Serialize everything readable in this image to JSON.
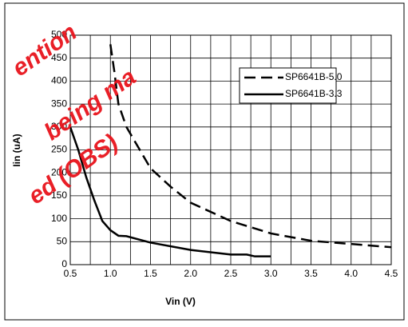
{
  "chart_data": {
    "type": "line",
    "xlabel": "Vin (V)",
    "ylabel": "Iin (uA)",
    "xlim": [
      0.5,
      4.5
    ],
    "ylim": [
      0,
      500
    ],
    "xticks": [
      0.5,
      {
        "value": 1,
        "label": "1.0"
      },
      1.5,
      {
        "value": 2,
        "label": "2.0"
      },
      2.5,
      {
        "value": 3,
        "label": "3.0"
      },
      3.5,
      {
        "value": 4,
        "label": "4.0"
      },
      4.5
    ],
    "yticks": [
      0,
      50,
      100,
      150,
      200,
      250,
      300,
      350,
      400,
      450,
      500
    ],
    "x_minor_grid": [
      0.75,
      1.25,
      1.75,
      2.25,
      2.75,
      3.25,
      3.75,
      4.25
    ],
    "grid": true,
    "series": [
      {
        "name": "SP6641B-5.0",
        "color": "#000000",
        "dash": true,
        "x": [
          1.0,
          1.05,
          1.1,
          1.2,
          1.3,
          1.5,
          1.75,
          2.0,
          2.5,
          3.0,
          3.5,
          4.0,
          4.5
        ],
        "values": [
          480,
          420,
          350,
          300,
          270,
          210,
          170,
          135,
          95,
          68,
          52,
          45,
          38
        ]
      },
      {
        "name": "SP6641B-3.3",
        "color": "#000000",
        "dash": false,
        "x": [
          0.5,
          0.6,
          0.7,
          0.8,
          0.9,
          1.0,
          1.1,
          1.2,
          1.5,
          2.0,
          2.5,
          2.7,
          2.8,
          3.0
        ],
        "values": [
          300,
          250,
          190,
          140,
          95,
          75,
          63,
          62,
          48,
          32,
          22,
          22,
          18,
          18
        ]
      }
    ],
    "watermark": [
      "ention",
      "being ma",
      "ed (OBS)"
    ],
    "watermark_color": "#e8141c"
  }
}
